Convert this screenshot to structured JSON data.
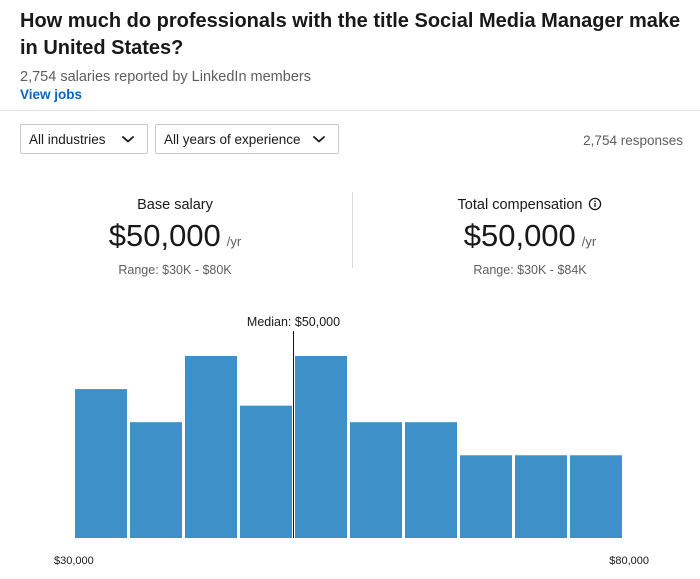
{
  "header": {
    "title": "How much do professionals with the title Social Media Manager make in United States?",
    "subtitle": "2,754 salaries reported by LinkedIn members",
    "view_jobs": "View jobs"
  },
  "filters": {
    "industry": "All industries",
    "experience": "All years of experience",
    "responses": "2,754 responses"
  },
  "stats": {
    "base": {
      "label": "Base salary",
      "value": "$50,000",
      "unit": "/yr",
      "range": "Range: $30K - $80K"
    },
    "total": {
      "label": "Total compensation",
      "value": "$50,000",
      "unit": "/yr",
      "range": "Range: $30K - $84K"
    }
  },
  "icons": {
    "dropdown": "chevron-down-icon",
    "info": "info-icon"
  },
  "colors": {
    "bar": "#3d90c8",
    "link": "#0a66c2"
  },
  "chart_data": {
    "type": "bar",
    "title": "",
    "xlabel": "",
    "ylabel": "",
    "x_min_label": "$30,000",
    "x_max_label": "$80,000",
    "median_label": "Median: $50,000",
    "median_bin_boundary": 4,
    "values": [
      4.5,
      3.5,
      5.5,
      4.0,
      5.5,
      3.5,
      3.5,
      2.5,
      2.5,
      2.5
    ],
    "ylim": [
      0,
      5.5
    ]
  }
}
